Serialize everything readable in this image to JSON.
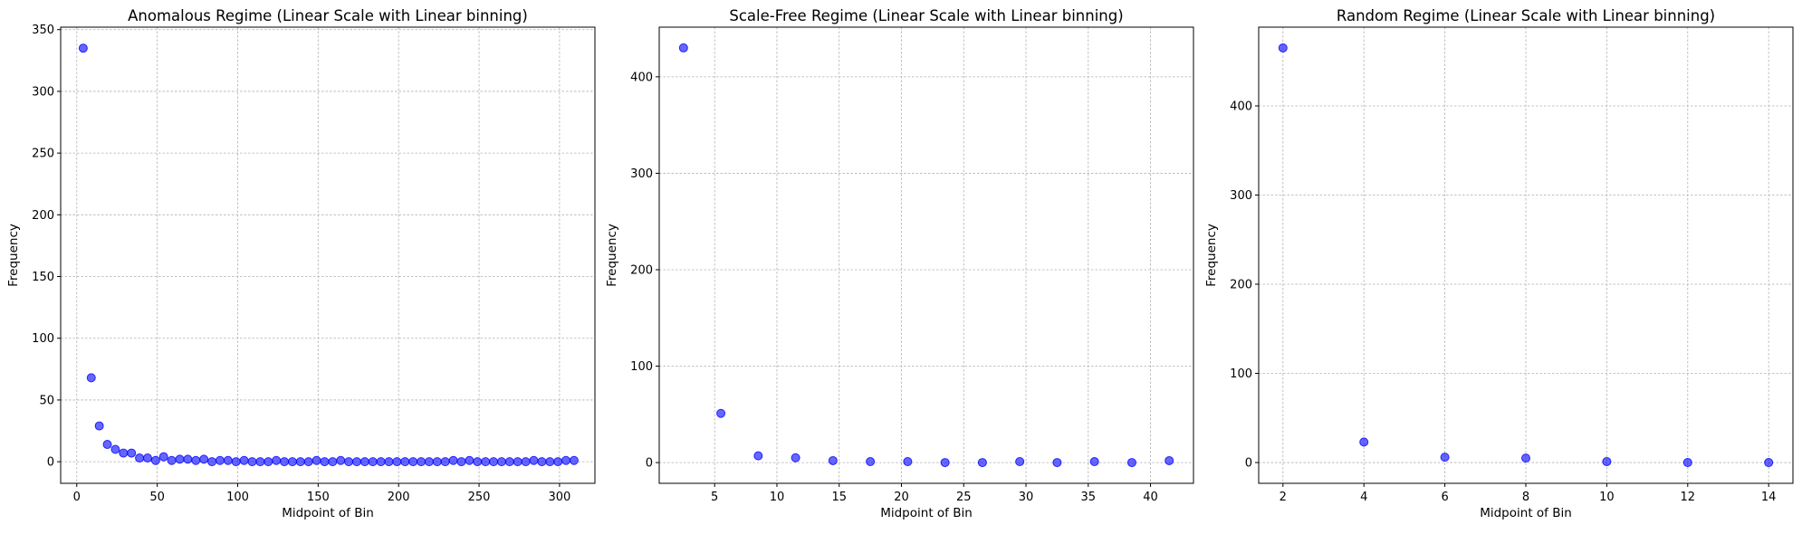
{
  "chart_data": [
    {
      "type": "scatter",
      "title": "Anomalous Regime (Linear Scale with Linear binning)",
      "xlabel": "Midpoint of Bin",
      "ylabel": "Frequency",
      "xlim": [
        -10,
        322
      ],
      "ylim": [
        -17.5,
        352
      ],
      "xticks": [
        0,
        50,
        100,
        150,
        200,
        250,
        300
      ],
      "yticks": [
        0,
        50,
        100,
        150,
        200,
        250,
        300,
        350
      ],
      "grid": true,
      "point_color": "#0000ff",
      "x": [
        4,
        9,
        14,
        19,
        24,
        29,
        34,
        39,
        44,
        49,
        54,
        59,
        64,
        69,
        74,
        79,
        84,
        89,
        94,
        99,
        104,
        109,
        114,
        119,
        124,
        129,
        134,
        139,
        144,
        149,
        154,
        159,
        164,
        169,
        174,
        179,
        184,
        189,
        194,
        199,
        204,
        209,
        214,
        219,
        224,
        229,
        234,
        239,
        244,
        249,
        254,
        259,
        264,
        269,
        274,
        279,
        284,
        289,
        294,
        299,
        304,
        309
      ],
      "y": [
        335,
        68,
        29,
        14,
        10,
        7,
        7,
        3,
        3,
        1,
        4,
        1,
        2,
        2,
        1,
        2,
        0,
        1,
        1,
        0,
        1,
        0,
        0,
        0,
        1,
        0,
        0,
        0,
        0,
        1,
        0,
        0,
        1,
        0,
        0,
        0,
        0,
        0,
        0,
        0,
        0,
        0,
        0,
        0,
        0,
        0,
        1,
        0,
        1,
        0,
        0,
        0,
        0,
        0,
        0,
        0,
        1,
        0,
        0,
        0,
        1,
        1
      ]
    },
    {
      "type": "scatter",
      "title": "Scale-Free Regime (Linear Scale with Linear binning)",
      "xlabel": "Midpoint of Bin",
      "ylabel": "Frequency",
      "xlim": [
        0.55,
        43.45
      ],
      "ylim": [
        -21.5,
        451.5
      ],
      "xticks": [
        5,
        10,
        15,
        20,
        25,
        30,
        35,
        40
      ],
      "yticks": [
        0,
        100,
        200,
        300,
        400
      ],
      "grid": true,
      "point_color": "#0000ff",
      "x": [
        2.5,
        5.5,
        8.5,
        11.5,
        14.5,
        17.5,
        20.5,
        23.5,
        26.5,
        29.5,
        32.5,
        35.5,
        38.5,
        41.5
      ],
      "y": [
        430,
        51,
        7,
        5,
        2,
        1,
        1,
        0,
        0,
        1,
        0,
        1,
        0,
        2
      ]
    },
    {
      "type": "scatter",
      "title": "Random Regime (Linear Scale with Linear binning)",
      "xlabel": "Midpoint of Bin",
      "ylabel": "Frequency",
      "xlim": [
        1.4,
        14.6
      ],
      "ylim": [
        -23.3,
        488.3
      ],
      "xticks": [
        2,
        4,
        6,
        8,
        10,
        12,
        14
      ],
      "yticks": [
        0,
        100,
        200,
        300,
        400
      ],
      "grid": true,
      "point_color": "#0000ff",
      "x": [
        2,
        4,
        6,
        8,
        10,
        12,
        14
      ],
      "y": [
        465,
        23,
        6,
        5,
        1,
        0,
        0
      ]
    }
  ]
}
